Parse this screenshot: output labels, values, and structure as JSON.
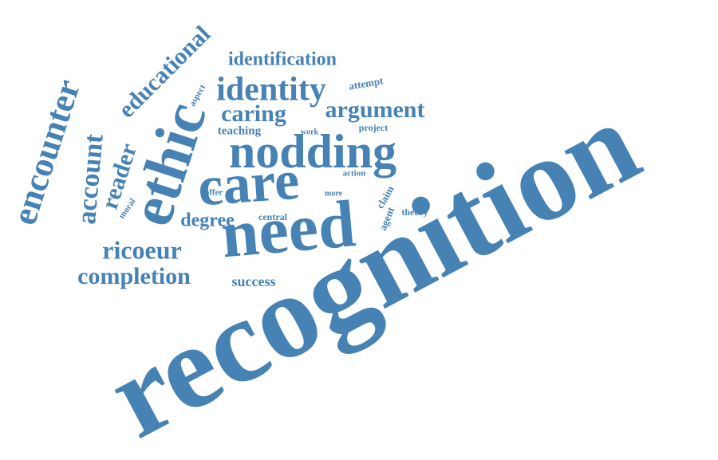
{
  "accent_color": "#4682b4",
  "words": [
    "recognition",
    "need",
    "care",
    "ethic",
    "nodding",
    "identity",
    "identification",
    "caring",
    "argument",
    "encounter",
    "educational",
    "account",
    "reader",
    "ricoeur",
    "completion",
    "degree",
    "success",
    "teaching",
    "aspect",
    "attempt",
    "work",
    "project",
    "action",
    "offer",
    "more",
    "claim",
    "agent",
    "theory",
    "moral",
    "central"
  ]
}
